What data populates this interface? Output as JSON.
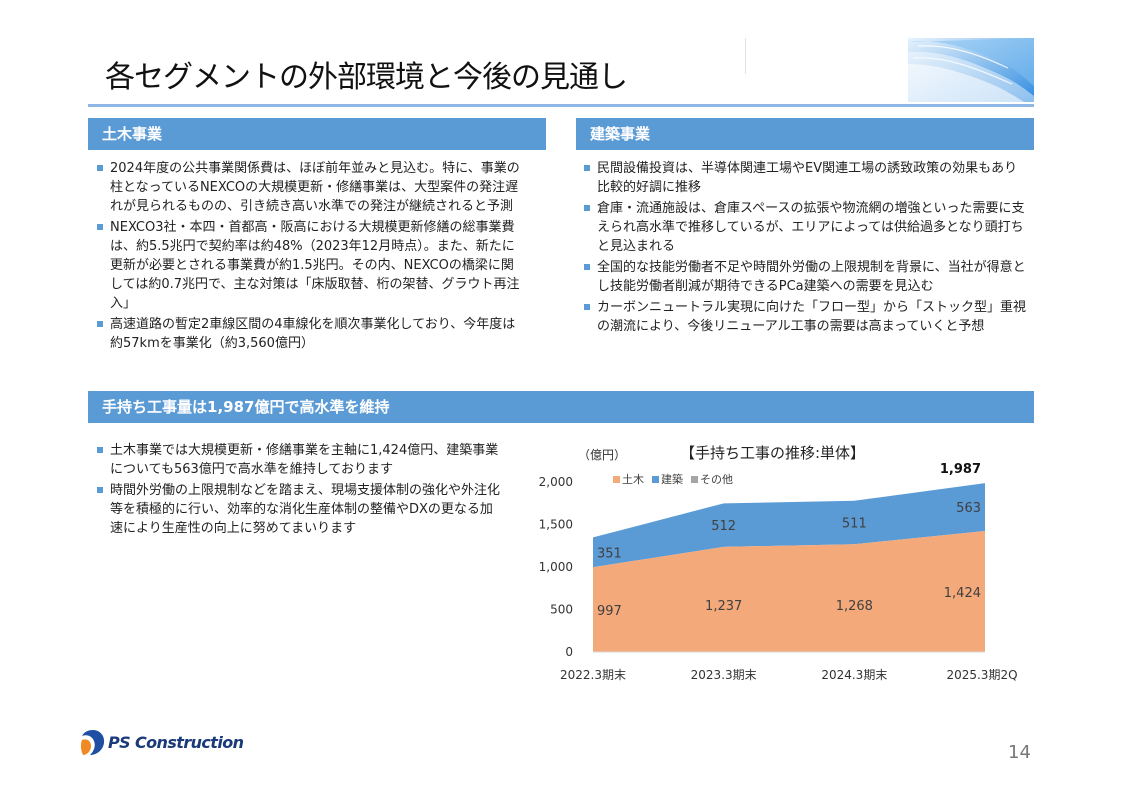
{
  "page": {
    "title": "各セグメントの外部環境と今後の見通し",
    "number": "14"
  },
  "civil": {
    "heading": "土木事業",
    "bullets": [
      "2024年度の公共事業関係費は、ほぼ前年並みと見込む。特に、事業の柱となっているNEXCOの大規模更新・修繕事業は、大型案件の発注遅れが見られるものの、引き続き高い水準での発注が継続されると予測",
      "NEXCO3社・本四・首都高・阪高における大規模更新修繕の総事業費は、約5.5兆円で契約率は約48%（2023年12月時点）。また、新たに更新が必要とされる事業費が約1.5兆円。その内、NEXCOの橋梁に関しては約0.7兆円で、主な対策は「床版取替、桁の架替、グラウト再注入」",
      "高速道路の暫定2車線区間の4車線化を順次事業化しており、今年度は約57kmを事業化（約3,560億円）"
    ]
  },
  "building": {
    "heading": "建築事業",
    "bullets": [
      "民間設備投資は、半導体関連工場やEV関連工場の誘致政策の効果もあり比較的好調に推移",
      "倉庫・流通施設は、倉庫スペースの拡張や物流網の増強といった需要に支えられ高水準で推移しているが、エリアによっては供給過多となり頭打ちと見込まれる",
      "全国的な技能労働者不足や時間外労働の上限規制を背景に、当社が得意とし技能労働者削減が期待できるPCa建築への需要を見込む",
      "カーボンニュートラル実現に向けた「フロー型」から「ストック型」重視の潮流により、今後リニューアル工事の需要は高まっていくと予想"
    ]
  },
  "backlog": {
    "heading": "手持ち工事量は1,987億円で高水準を維持",
    "bullets": [
      "土木事業では大規模更新・修繕事業を主軸に1,424億円、建築事業についても563億円で高水準を維持しております",
      "時間外労働の上限規制などを踏まえ、現場支援体制の強化や外注化等を積極的に行い、効率的な消化生産体制の整備やDXの更なる加速により生産性の向上に努めてまいります"
    ]
  },
  "chart_data": {
    "type": "area",
    "stacked": true,
    "title": "【手持ち工事の推移:単体】",
    "unit_label": "（億円）",
    "categories": [
      "2022.3期末",
      "2023.3期末",
      "2024.3期末",
      "2025.3期2Q"
    ],
    "series": [
      {
        "name": "土木",
        "values": [
          997,
          1237,
          1268,
          1424
        ],
        "color": "#f4a97a"
      },
      {
        "name": "建築",
        "values": [
          351,
          512,
          511,
          563
        ],
        "color": "#5b9bd5"
      },
      {
        "name": "その他",
        "values": [
          0,
          0,
          0,
          0
        ],
        "color": "#a5a5a5"
      }
    ],
    "total_label": "1,987",
    "y_ticks": [
      "0",
      "500",
      "1,000",
      "1,500",
      "2,000"
    ],
    "ylim": [
      0,
      2000
    ],
    "legend_position": "top",
    "grid": false
  },
  "brand": {
    "logo_text": "PS Construction"
  },
  "colors": {
    "accent": "#5b9bd5",
    "rule": "#8fb7e6"
  }
}
